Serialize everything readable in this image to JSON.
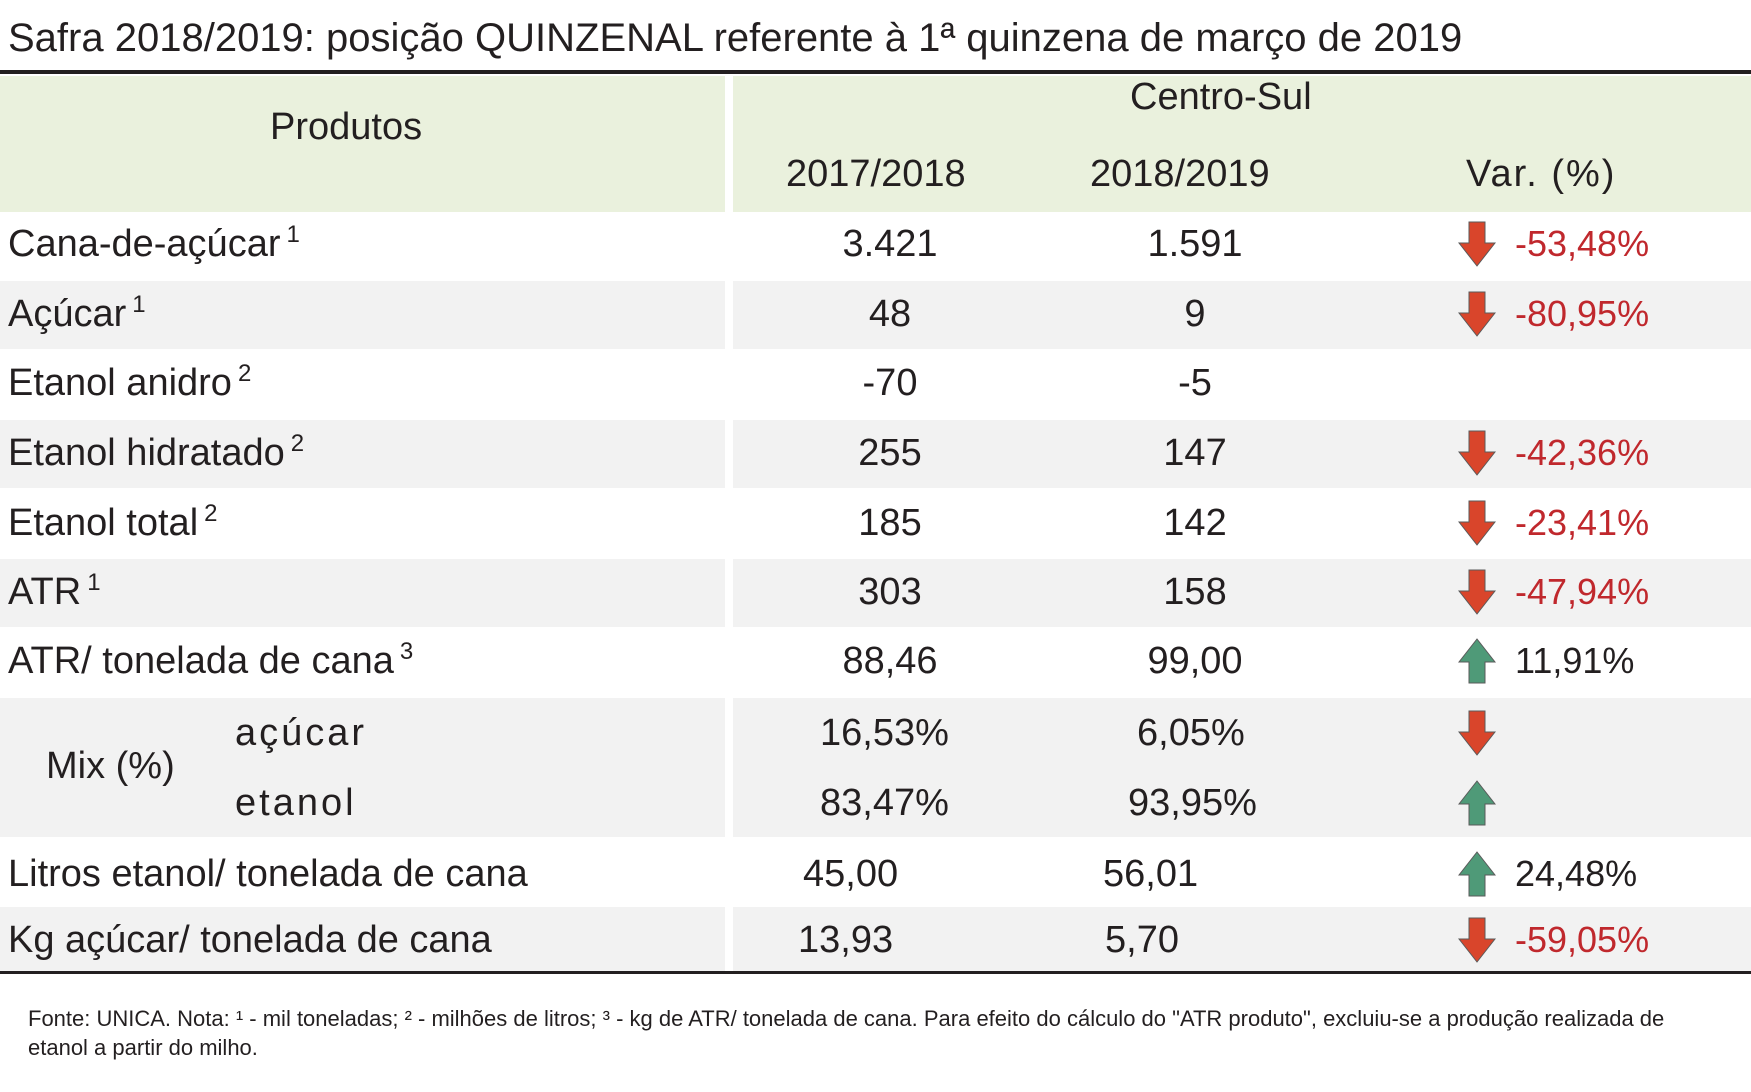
{
  "title": "Safra 2018/2019: posição QUINZENAL referente à 1ª quinzena de março de 2019",
  "header": {
    "produtos": "Produtos",
    "region": "Centro-Sul",
    "col1": "2017/2018",
    "col2": "2018/2019",
    "var": "Var. (%)"
  },
  "rows": [
    {
      "label": "Cana-de-açúcar",
      "note": "1",
      "v1": "3.421",
      "v2": "1.591",
      "var": "-53,48%",
      "dir": "down"
    },
    {
      "label": "Açúcar",
      "note": "1",
      "v1": "48",
      "v2": "9",
      "var": "-80,95%",
      "dir": "down"
    },
    {
      "label": "Etanol anidro",
      "note": "2",
      "v1": "-70",
      "v2": "-5",
      "var": "",
      "dir": ""
    },
    {
      "label": "Etanol hidratado",
      "note": "2",
      "v1": "255",
      "v2": "147",
      "var": "-42,36%",
      "dir": "down"
    },
    {
      "label": "Etanol total",
      "note": "2",
      "v1": "185",
      "v2": "142",
      "var": "-23,41%",
      "dir": "down"
    },
    {
      "label": "ATR",
      "note": "1",
      "v1": "303",
      "v2": "158",
      "var": "-47,94%",
      "dir": "down"
    },
    {
      "label": "ATR/ tonelada de cana",
      "note": "3",
      "v1": "88,46",
      "v2": "99,00",
      "var": "11,91%",
      "dir": "up"
    }
  ],
  "mix": {
    "label": "Mix (%)",
    "acucar": {
      "label": "açúcar",
      "v1": "16,53%",
      "v2": "6,05%",
      "dir": "down"
    },
    "etanol": {
      "label": "etanol",
      "v1": "83,47%",
      "v2": "93,95%",
      "dir": "up"
    }
  },
  "litros": {
    "label": "Litros etanol/ tonelada de cana",
    "v1": "45,00",
    "v2": "56,01",
    "var": "24,48%",
    "dir": "up"
  },
  "kg": {
    "label": "Kg açúcar/ tonelada de cana",
    "v1": "13,93",
    "v2": "5,70",
    "var": "-59,05%",
    "dir": "down"
  },
  "footnote": "Fonte: UNICA. Nota: ¹ - mil toneladas; ² - milhões de litros; ³ - kg de ATR/ tonelada de cana. Para efeito do cálculo do \"ATR produto\", excluiu-se a produção realizada de etanol a partir do milho.",
  "colors": {
    "header_bg": "#eaf1dd",
    "stripe_bg": "#f2f2f2",
    "down_arrow": "#d9452b",
    "up_arrow": "#4f9a78",
    "negative_text": "#c0282d"
  }
}
